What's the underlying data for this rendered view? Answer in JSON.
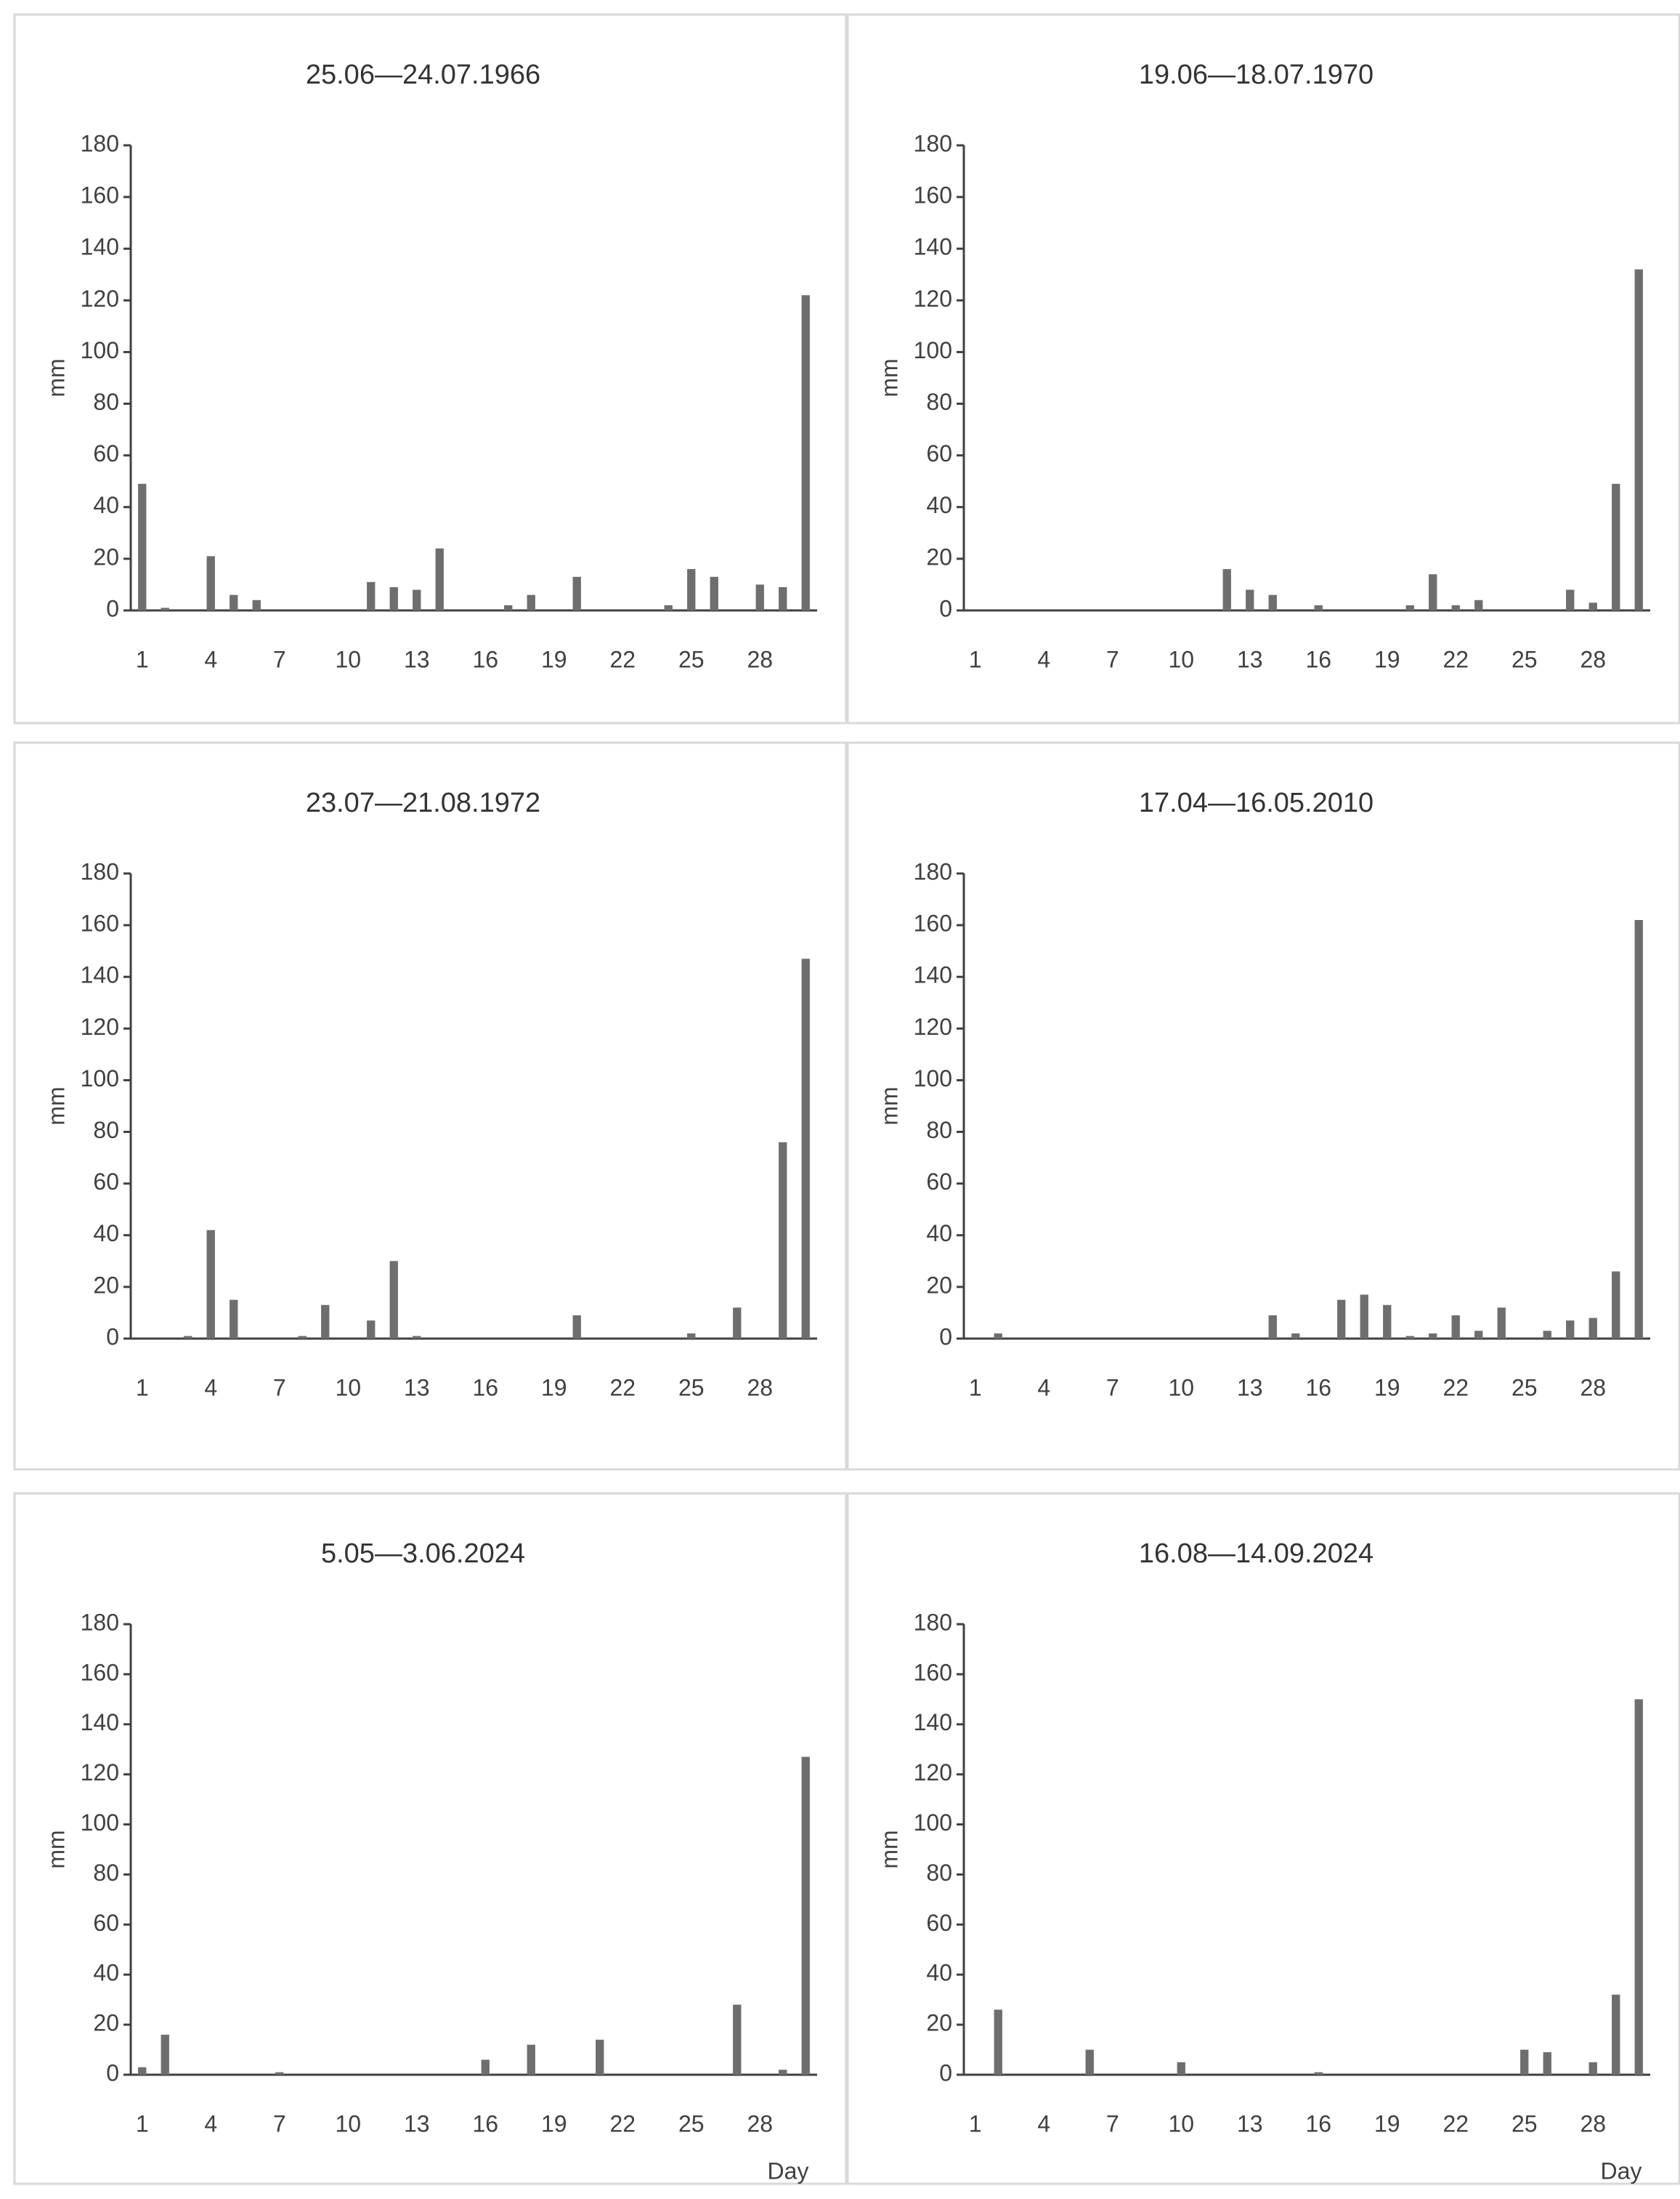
{
  "chart_data": [
    {
      "type": "bar",
      "title": "25.06—24.07.1966",
      "ylabel": "mm",
      "color": "#6e6e6e",
      "categories": [
        "1",
        null,
        null,
        "4",
        null,
        null,
        "7",
        null,
        null,
        "10",
        null,
        null,
        "13",
        null,
        null,
        "16",
        null,
        null,
        "19",
        null,
        null,
        "22",
        null,
        null,
        "25",
        null,
        null,
        "28",
        null,
        null
      ],
      "values": [
        49,
        1,
        0,
        21,
        6,
        4,
        0,
        0,
        0,
        0,
        11,
        9,
        8,
        24,
        0,
        0,
        2,
        6,
        0,
        13,
        0,
        0,
        0,
        2,
        16,
        13,
        0,
        10,
        9,
        122
      ],
      "ylim": [
        0,
        180
      ],
      "yticks": [
        0,
        20,
        40,
        60,
        80,
        100,
        120,
        140,
        160,
        180
      ]
    },
    {
      "type": "bar",
      "title": "19.06—18.07.1970",
      "ylabel": "mm",
      "color": "#6e6e6e",
      "categories": [
        "1",
        null,
        null,
        "4",
        null,
        null,
        "7",
        null,
        null,
        "10",
        null,
        null,
        "13",
        null,
        null,
        "16",
        null,
        null,
        "19",
        null,
        null,
        "22",
        null,
        null,
        "25",
        null,
        null,
        "28",
        null,
        null
      ],
      "values": [
        0,
        0,
        0,
        0,
        0,
        0,
        0,
        0,
        0,
        0,
        0,
        16,
        8,
        6,
        0,
        2,
        0,
        0,
        0,
        2,
        14,
        2,
        4,
        0,
        0,
        0,
        8,
        3,
        49,
        132
      ],
      "ylim": [
        0,
        180
      ],
      "yticks": [
        0,
        20,
        40,
        60,
        80,
        100,
        120,
        140,
        160,
        180
      ]
    },
    {
      "type": "bar",
      "title": "23.07—21.08.1972",
      "ylabel": "mm",
      "color": "#6e6e6e",
      "categories": [
        "1",
        null,
        null,
        "4",
        null,
        null,
        "7",
        null,
        null,
        "10",
        null,
        null,
        "13",
        null,
        null,
        "16",
        null,
        null,
        "19",
        null,
        null,
        "22",
        null,
        null,
        "25",
        null,
        null,
        "28",
        null,
        null
      ],
      "values": [
        0,
        0,
        1,
        42,
        15,
        0,
        0,
        1,
        13,
        0,
        7,
        30,
        1,
        0,
        0,
        0,
        0,
        0,
        0,
        9,
        0,
        0,
        0,
        0,
        2,
        0,
        12,
        0,
        76,
        147
      ],
      "ylim": [
        0,
        180
      ],
      "yticks": [
        0,
        20,
        40,
        60,
        80,
        100,
        120,
        140,
        160,
        180
      ]
    },
    {
      "type": "bar",
      "title": "17.04—16.05.2010",
      "ylabel": "mm",
      "color": "#6e6e6e",
      "categories": [
        "1",
        null,
        null,
        "4",
        null,
        null,
        "7",
        null,
        null,
        "10",
        null,
        null,
        "13",
        null,
        null,
        "16",
        null,
        null,
        "19",
        null,
        null,
        "22",
        null,
        null,
        "25",
        null,
        null,
        "28",
        null,
        null
      ],
      "values": [
        0,
        2,
        0,
        0,
        0,
        0,
        0,
        0,
        0,
        0,
        0,
        0,
        0,
        9,
        2,
        0,
        15,
        17,
        13,
        1,
        2,
        9,
        3,
        12,
        0,
        3,
        7,
        8,
        26,
        162
      ],
      "ylim": [
        0,
        180
      ],
      "yticks": [
        0,
        20,
        40,
        60,
        80,
        100,
        120,
        140,
        160,
        180
      ]
    },
    {
      "type": "bar",
      "title": "5.05—3.06.2024",
      "ylabel": "mm",
      "xlabel": "Day",
      "color": "#6e6e6e",
      "categories": [
        "1",
        null,
        null,
        "4",
        null,
        null,
        "7",
        null,
        null,
        "10",
        null,
        null,
        "13",
        null,
        null,
        "16",
        null,
        null,
        "19",
        null,
        null,
        "22",
        null,
        null,
        "25",
        null,
        null,
        "28",
        null,
        null
      ],
      "values": [
        3,
        16,
        0,
        0,
        0,
        0,
        1,
        0,
        0,
        0,
        0,
        0,
        0,
        0,
        0,
        6,
        0,
        12,
        0,
        0,
        14,
        0,
        0,
        0,
        0,
        0,
        28,
        0,
        2,
        127
      ],
      "ylim": [
        0,
        180
      ],
      "yticks": [
        0,
        20,
        40,
        60,
        80,
        100,
        120,
        140,
        160,
        180
      ]
    },
    {
      "type": "bar",
      "title": "16.08—14.09.2024",
      "ylabel": "mm",
      "xlabel": "Day",
      "color": "#6e6e6e",
      "categories": [
        "1",
        null,
        null,
        "4",
        null,
        null,
        "7",
        null,
        null,
        "10",
        null,
        null,
        "13",
        null,
        null,
        "16",
        null,
        null,
        "19",
        null,
        null,
        "22",
        null,
        null,
        "25",
        null,
        null,
        "28",
        null,
        null
      ],
      "values": [
        0,
        26,
        0,
        0,
        0,
        10,
        0,
        0,
        0,
        5,
        0,
        0,
        0,
        0,
        0,
        1,
        0,
        0,
        0,
        0,
        0,
        0,
        0,
        0,
        10,
        9,
        0,
        5,
        32,
        150
      ],
      "ylim": [
        0,
        180
      ],
      "yticks": [
        0,
        20,
        40,
        60,
        80,
        100,
        120,
        140,
        160,
        180
      ]
    }
  ]
}
